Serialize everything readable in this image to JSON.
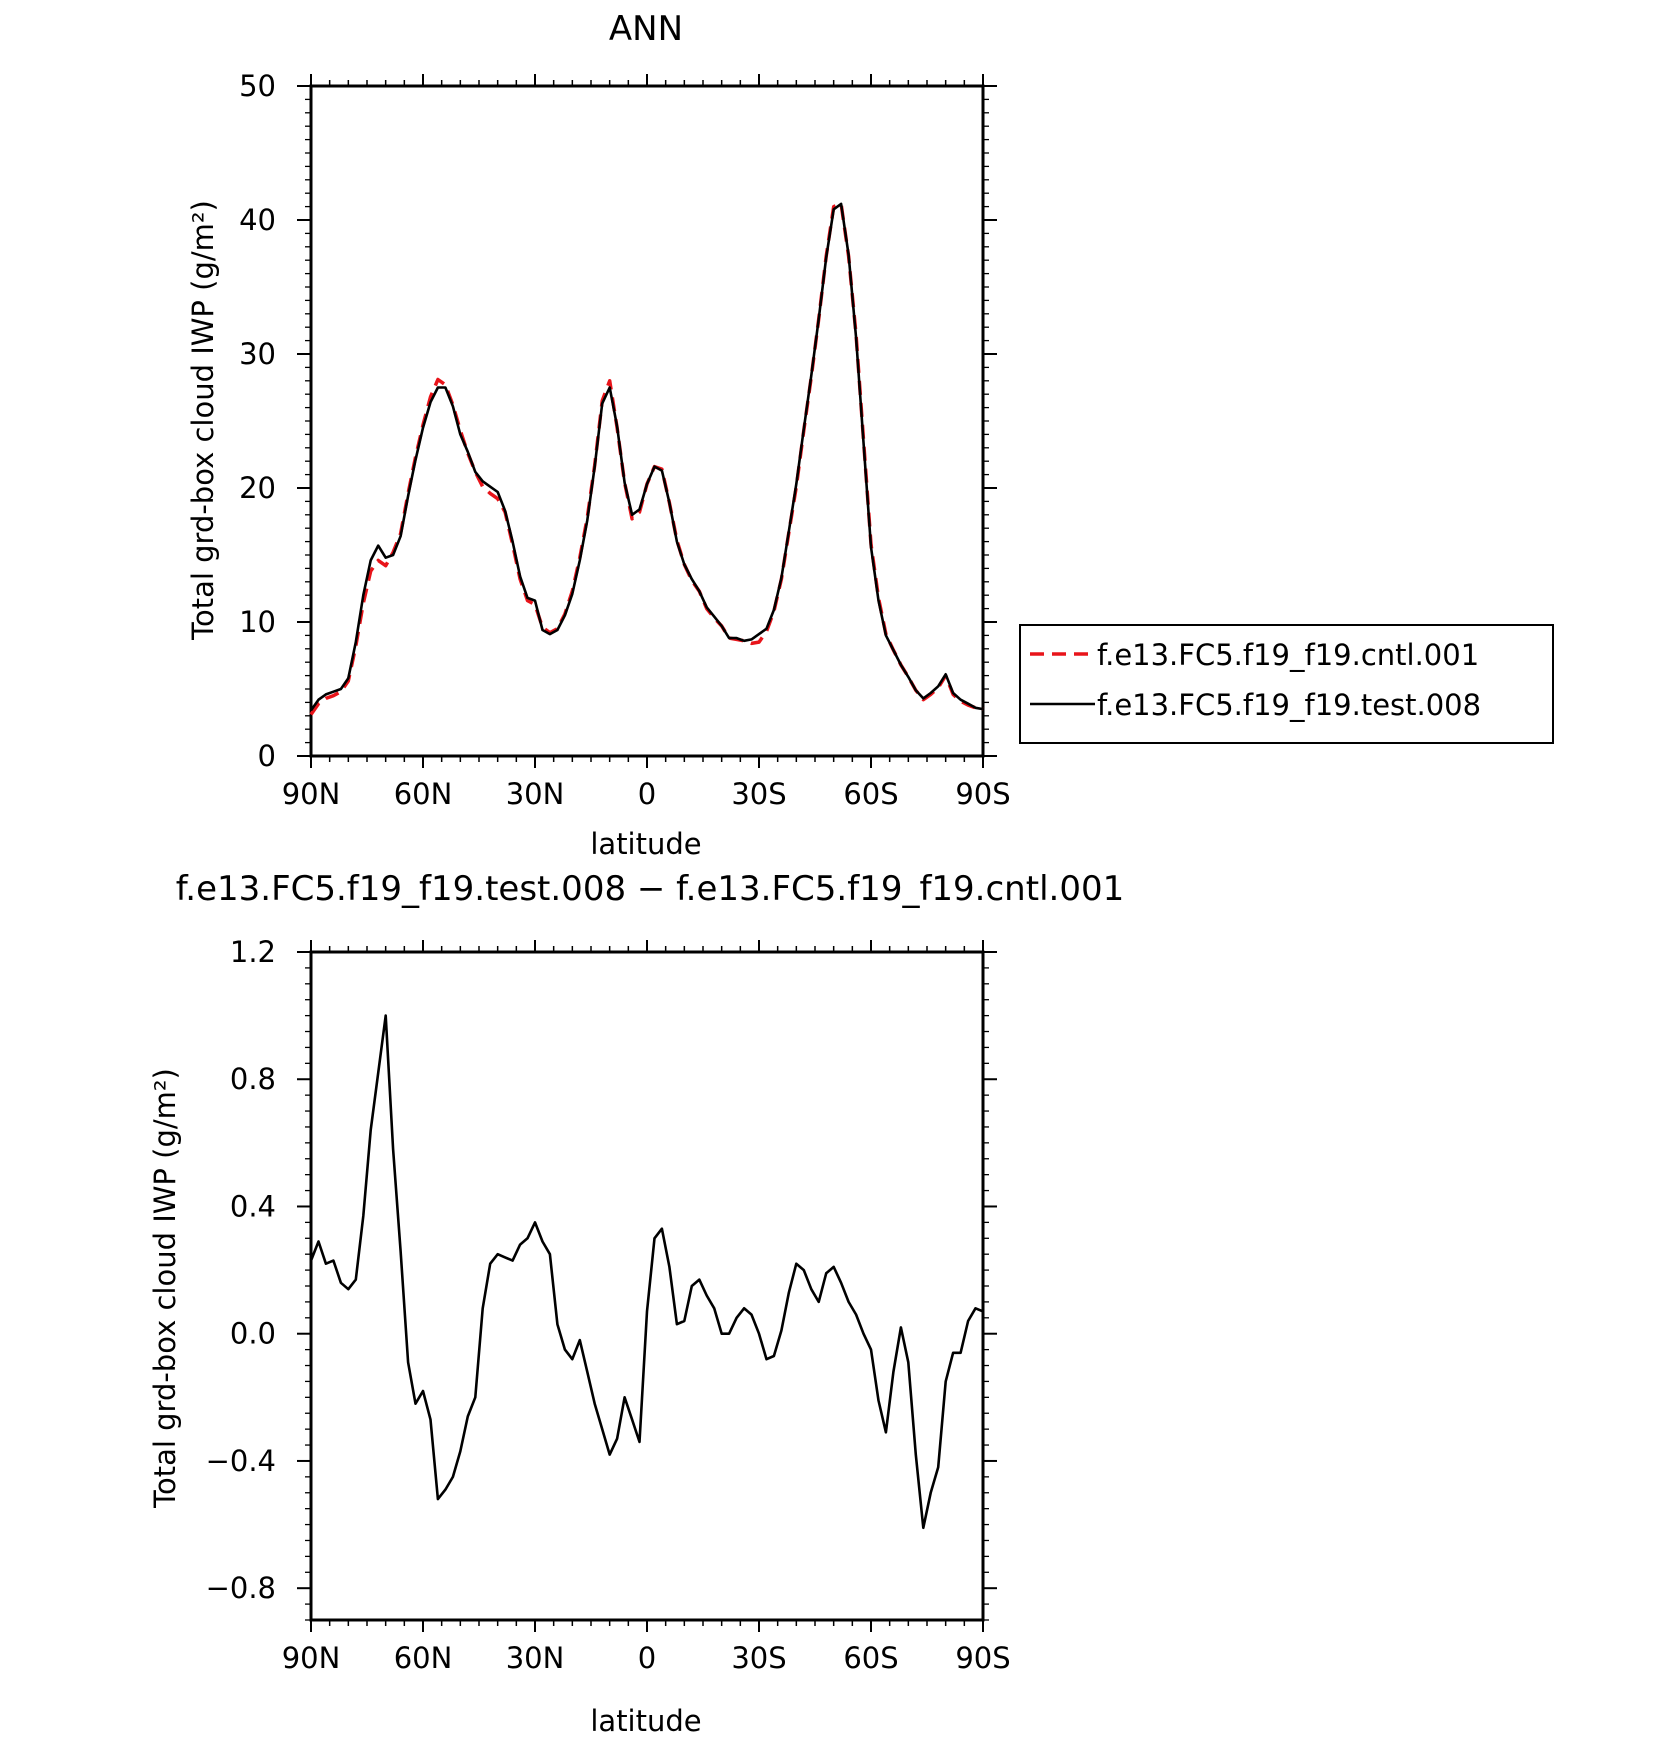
{
  "chart_data": [
    {
      "type": "line",
      "title": "ANN",
      "xlabel": "latitude",
      "ylabel": "Total grd-box cloud IWP (g/m²)",
      "xlim": [
        90,
        -90
      ],
      "ylim": [
        0,
        50
      ],
      "x_ticks": [
        {
          "value": 90,
          "label": "90N"
        },
        {
          "value": 60,
          "label": "60N"
        },
        {
          "value": 30,
          "label": "30N"
        },
        {
          "value": 0,
          "label": "0"
        },
        {
          "value": -30,
          "label": "30S"
        },
        {
          "value": -60,
          "label": "60S"
        },
        {
          "value": -90,
          "label": "90S"
        }
      ],
      "y_ticks": [
        {
          "value": 0,
          "label": "0"
        },
        {
          "value": 10,
          "label": "10"
        },
        {
          "value": 20,
          "label": "20"
        },
        {
          "value": 30,
          "label": "30"
        },
        {
          "value": 40,
          "label": "40"
        },
        {
          "value": 50,
          "label": "50"
        }
      ],
      "legend": "right",
      "series": [
        {
          "name": "f.e13.FC5.f19_f19.cntl.001",
          "color": "#e8141a",
          "dash": "dashed",
          "x": [
            90,
            88,
            86,
            84,
            82,
            80,
            78,
            76,
            74,
            72,
            70,
            68,
            66,
            64,
            62,
            60,
            58,
            56,
            54,
            52,
            50,
            48,
            46,
            44,
            42,
            40,
            38,
            36,
            34,
            32,
            30,
            28,
            26,
            24,
            22,
            20,
            18,
            16,
            14,
            12,
            10,
            8,
            6,
            4,
            2,
            0,
            -2,
            -4,
            -6,
            -8,
            -10,
            -12,
            -14,
            -16,
            -18,
            -20,
            -22,
            -24,
            -26,
            -28,
            -30,
            -32,
            -34,
            -36,
            -38,
            -40,
            -42,
            -44,
            -46,
            -48,
            -50,
            -52,
            -54,
            -56,
            -58,
            -60,
            -62,
            -64,
            -66,
            -68,
            -70,
            -72,
            -74,
            -76,
            -78,
            -80,
            -82,
            -84,
            -86,
            -88,
            -90
          ],
          "y": [
            3.1,
            3.9,
            4.3,
            4.5,
            4.8,
            5.6,
            8.2,
            11.4,
            13.8,
            14.6,
            14.2,
            15.2,
            16.6,
            19.6,
            22.3,
            24.7,
            26.8,
            28.1,
            27.7,
            26.2,
            24.3,
            22.6,
            21.2,
            20.1,
            19.6,
            19.2,
            18.2,
            15.8,
            13.2,
            11.6,
            11.3,
            9.6,
            9.2,
            9.5,
            10.6,
            12.3,
            14.8,
            17.8,
            21.7,
            26.5,
            28.0,
            24.5,
            20.4,
            17.7,
            18.2,
            20.3,
            21.6,
            21.4,
            18.9,
            16.1,
            14.3,
            13.1,
            12.3,
            11.0,
            10.3,
            9.7,
            8.8,
            8.7,
            8.6,
            8.4,
            8.5,
            9.3,
            10.8,
            13.2,
            16.7,
            20.1,
            24.3,
            28.3,
            32.6,
            37.3,
            41.0,
            41.2,
            37.3,
            31.4,
            23.6,
            15.8,
            11.8,
            9.1,
            7.9,
            6.8,
            5.9,
            4.9,
            4.2,
            4.6,
            5.1,
            6.0,
            4.6,
            4.1,
            3.8,
            3.6,
            3.5
          ]
        },
        {
          "name": "f.e13.FC5.f19_f19.test.008",
          "color": "#000000",
          "dash": "solid",
          "x": [
            90,
            88,
            86,
            84,
            82,
            80,
            78,
            76,
            74,
            72,
            70,
            68,
            66,
            64,
            62,
            60,
            58,
            56,
            54,
            52,
            50,
            48,
            46,
            44,
            42,
            40,
            38,
            36,
            34,
            32,
            30,
            28,
            26,
            24,
            22,
            20,
            18,
            16,
            14,
            12,
            10,
            8,
            6,
            4,
            2,
            0,
            -2,
            -4,
            -6,
            -8,
            -10,
            -12,
            -14,
            -16,
            -18,
            -20,
            -22,
            -24,
            -26,
            -28,
            -30,
            -32,
            -34,
            -36,
            -38,
            -40,
            -42,
            -44,
            -46,
            -48,
            -50,
            -52,
            -54,
            -56,
            -58,
            -60,
            -62,
            -64,
            -66,
            -68,
            -70,
            -72,
            -74,
            -76,
            -78,
            -80,
            -82,
            -84,
            -86,
            -88,
            -90
          ],
          "y": [
            3.4,
            4.2,
            4.6,
            4.8,
            5.0,
            5.8,
            8.5,
            12.0,
            14.6,
            15.7,
            14.8,
            15.0,
            16.4,
            19.4,
            22.1,
            24.5,
            26.4,
            27.5,
            27.5,
            26.1,
            24.0,
            22.7,
            21.2,
            20.5,
            20.1,
            19.7,
            18.3,
            16.0,
            13.4,
            11.8,
            11.6,
            9.4,
            9.1,
            9.4,
            10.5,
            12.1,
            14.6,
            17.6,
            21.6,
            26.3,
            27.5,
            24.6,
            20.4,
            18.0,
            18.4,
            20.3,
            21.6,
            21.3,
            18.9,
            16.0,
            14.3,
            13.2,
            12.3,
            11.1,
            10.4,
            9.7,
            8.8,
            8.8,
            8.6,
            8.7,
            9.1,
            9.5,
            10.9,
            13.3,
            16.8,
            20.3,
            24.4,
            28.4,
            32.6,
            37.2,
            40.8,
            41.2,
            37.4,
            31.2,
            23.4,
            15.6,
            11.6,
            9.0,
            7.9,
            6.8,
            5.9,
            4.9,
            4.3,
            4.7,
            5.2,
            6.1,
            4.7,
            4.2,
            3.9,
            3.6,
            3.5
          ]
        }
      ]
    },
    {
      "type": "line",
      "title": "f.e13.FC5.f19_f19.test.008 − f.e13.FC5.f19_f19.cntl.001",
      "xlabel": "latitude",
      "ylabel": "Total grd-box cloud IWP (g/m²)",
      "xlim": [
        90,
        -90
      ],
      "ylim": [
        -0.9,
        1.2
      ],
      "x_ticks": [
        {
          "value": 90,
          "label": "90N"
        },
        {
          "value": 60,
          "label": "60N"
        },
        {
          "value": 30,
          "label": "30N"
        },
        {
          "value": 0,
          "label": "0"
        },
        {
          "value": -30,
          "label": "30S"
        },
        {
          "value": -60,
          "label": "60S"
        },
        {
          "value": -90,
          "label": "90S"
        }
      ],
      "y_ticks": [
        {
          "value": 1.2,
          "label": "1.2"
        },
        {
          "value": 0.8,
          "label": "0.8"
        },
        {
          "value": 0.4,
          "label": "0.4"
        },
        {
          "value": 0.0,
          "label": "0.0"
        },
        {
          "value": -0.4,
          "label": "−0.4"
        },
        {
          "value": -0.8,
          "label": "−0.8"
        }
      ],
      "series": [
        {
          "color": "#000000",
          "x": [
            90,
            88,
            86,
            84,
            82,
            80,
            78,
            76,
            74,
            72,
            70,
            68,
            66,
            64,
            62,
            60,
            58,
            56,
            54,
            52,
            50,
            48,
            46,
            44,
            42,
            40,
            38,
            36,
            34,
            32,
            30,
            28,
            26,
            24,
            22,
            20,
            18,
            16,
            14,
            12,
            10,
            8,
            6,
            4,
            2,
            0,
            -2,
            -4,
            -6,
            -8,
            -10,
            -12,
            -14,
            -16,
            -18,
            -20,
            -22,
            -24,
            -26,
            -28,
            -30,
            -32,
            -34,
            -36,
            -38,
            -40,
            -42,
            -44,
            -46,
            -48,
            -50,
            -52,
            -54,
            -56,
            -58,
            -60,
            -62,
            -64,
            -66,
            -68,
            -70,
            -72,
            -74,
            -76,
            -78,
            -80,
            -82,
            -84,
            -86,
            -88,
            -90
          ],
          "y": [
            0.23,
            0.29,
            0.22,
            0.23,
            0.16,
            0.14,
            0.17,
            0.37,
            0.64,
            0.82,
            1.0,
            0.58,
            0.26,
            -0.09,
            -0.22,
            -0.18,
            -0.27,
            -0.52,
            -0.49,
            -0.45,
            -0.37,
            -0.26,
            -0.2,
            0.08,
            0.22,
            0.25,
            0.24,
            0.23,
            0.28,
            0.3,
            0.35,
            0.29,
            0.25,
            0.03,
            -0.05,
            -0.08,
            -0.02,
            -0.12,
            -0.22,
            -0.3,
            -0.38,
            -0.33,
            -0.2,
            -0.27,
            -0.34,
            0.07,
            0.3,
            0.33,
            0.21,
            0.03,
            0.04,
            0.15,
            0.17,
            0.12,
            0.08,
            0.0,
            0.0,
            0.05,
            0.08,
            0.06,
            0.0,
            -0.08,
            -0.07,
            0.01,
            0.13,
            0.22,
            0.2,
            0.14,
            0.1,
            0.19,
            0.21,
            0.16,
            0.1,
            0.06,
            0.0,
            -0.05,
            -0.21,
            -0.31,
            -0.12,
            0.02,
            -0.09,
            -0.38,
            -0.61,
            -0.5,
            -0.42,
            -0.15,
            -0.06,
            -0.06,
            0.04,
            0.08,
            0.07
          ]
        }
      ]
    }
  ]
}
